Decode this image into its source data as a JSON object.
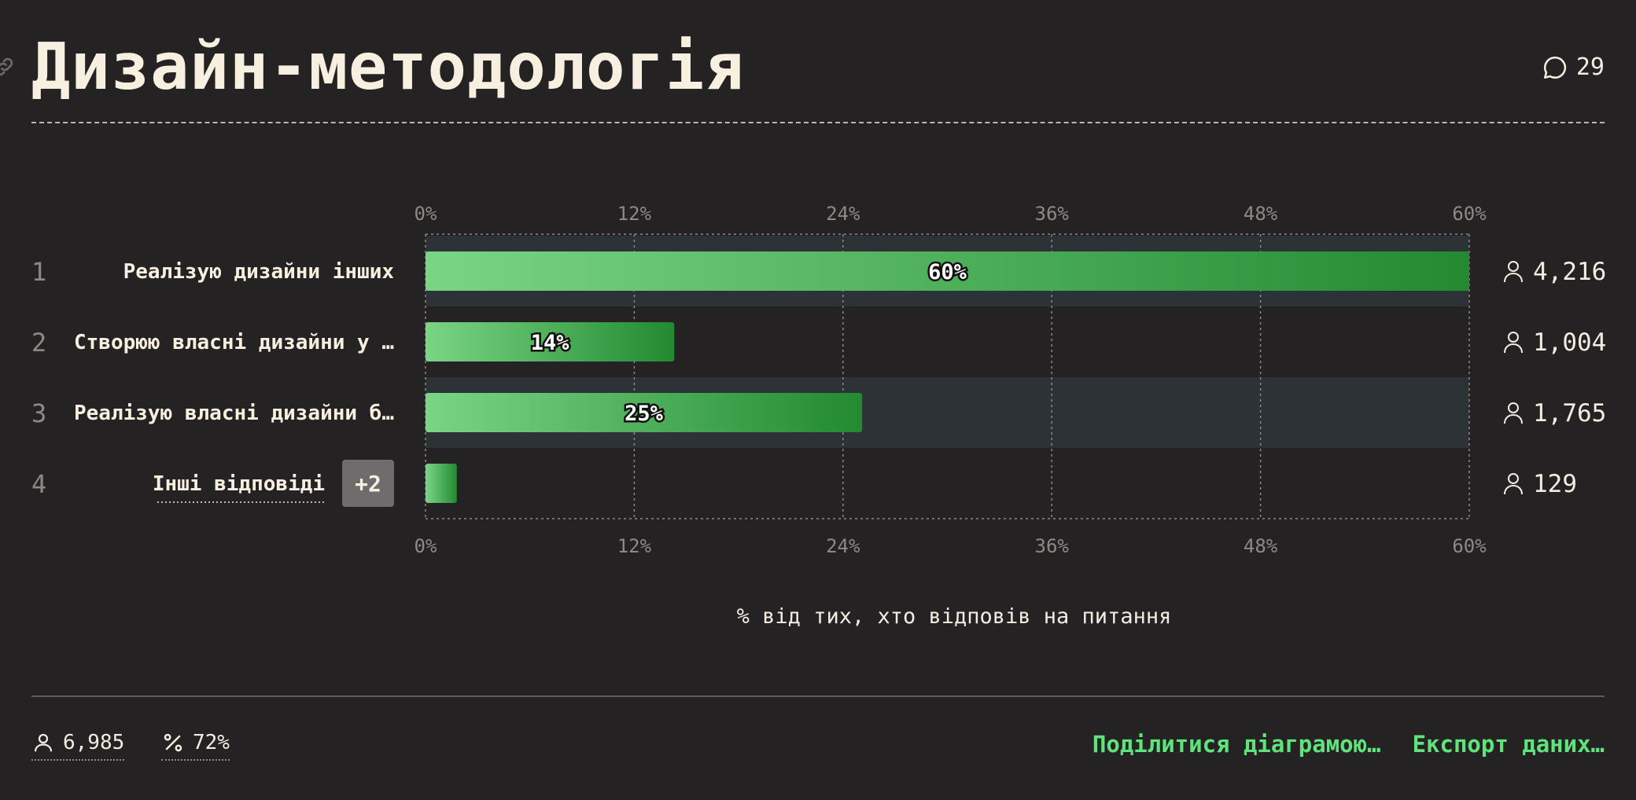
{
  "title": "Дизайн-методологія",
  "comments_count": "29",
  "footer": {
    "respondents": "6,985",
    "percent": "72%",
    "share_label": "Поділитися діаграмою…",
    "export_label": "Експорт даних…"
  },
  "chart_data": {
    "type": "bar",
    "orientation": "horizontal",
    "xlim": [
      0,
      60
    ],
    "xticks": [
      "0%",
      "12%",
      "24%",
      "36%",
      "48%",
      "60%"
    ],
    "xlabel": "% від тих, хто відповів на питання",
    "categories": [
      {
        "rank": "1",
        "label": "Реалізую дизайни інших",
        "value": 60,
        "value_label": "60%",
        "count": "4,216"
      },
      {
        "rank": "2",
        "label": "Створюю власні дизайни у …",
        "value": 14.3,
        "value_label": "14%",
        "count": "1,004"
      },
      {
        "rank": "3",
        "label": "Реалізую власні дизайни б…",
        "value": 25.1,
        "value_label": "25%",
        "count": "1,765"
      },
      {
        "rank": "4",
        "label": "Інші відповіді",
        "badge": "+2",
        "value": 1.8,
        "value_label": "",
        "count": "129"
      }
    ],
    "colors": {
      "bar_start": "#7ad585",
      "bar_end": "#238a31",
      "row_highlight": "#2d3236"
    }
  }
}
